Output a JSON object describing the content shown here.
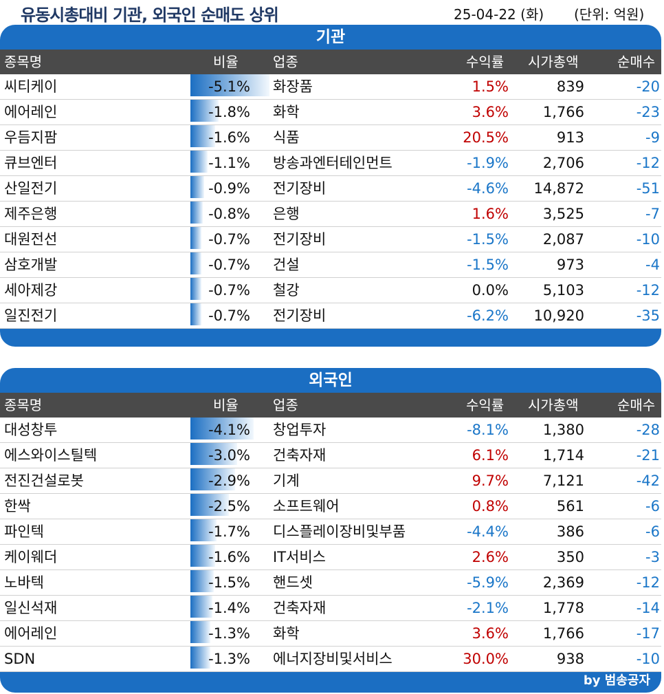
{
  "header": {
    "title": "유동시총대비 기관, 외국인 순매도 상위",
    "date": "25-04-22 (화)",
    "unit": "(단위: 억원)"
  },
  "columns": [
    "종목명",
    "비율",
    "업종",
    "수익률",
    "시가총액",
    "순매수"
  ],
  "colors": {
    "panel": "#1b6ec2",
    "header_bg": "#4a4a4a",
    "positive": "#c00000",
    "negative": "#1a76c8"
  },
  "credit": "by 범송공자",
  "chart_data": [
    {
      "type": "table",
      "title": "기관",
      "rows": [
        {
          "name": "씨티케이",
          "ratio": "-5.1%",
          "ratio_value": -5.1,
          "industry": "화장품",
          "return": "1.5%",
          "return_value": 1.5,
          "market_cap": "839",
          "net_buy": "-20"
        },
        {
          "name": "에어레인",
          "ratio": "-1.8%",
          "ratio_value": -1.8,
          "industry": "화학",
          "return": "3.6%",
          "return_value": 3.6,
          "market_cap": "1,766",
          "net_buy": "-23"
        },
        {
          "name": "우듬지팜",
          "ratio": "-1.6%",
          "ratio_value": -1.6,
          "industry": "식품",
          "return": "20.5%",
          "return_value": 20.5,
          "market_cap": "913",
          "net_buy": "-9"
        },
        {
          "name": "큐브엔터",
          "ratio": "-1.1%",
          "ratio_value": -1.1,
          "industry": "방송과엔터테인먼트",
          "return": "-1.9%",
          "return_value": -1.9,
          "market_cap": "2,706",
          "net_buy": "-12"
        },
        {
          "name": "산일전기",
          "ratio": "-0.9%",
          "ratio_value": -0.9,
          "industry": "전기장비",
          "return": "-4.6%",
          "return_value": -4.6,
          "market_cap": "14,872",
          "net_buy": "-51"
        },
        {
          "name": "제주은행",
          "ratio": "-0.8%",
          "ratio_value": -0.8,
          "industry": "은행",
          "return": "1.6%",
          "return_value": 1.6,
          "market_cap": "3,525",
          "net_buy": "-7"
        },
        {
          "name": "대원전선",
          "ratio": "-0.7%",
          "ratio_value": -0.7,
          "industry": "전기장비",
          "return": "-1.5%",
          "return_value": -1.5,
          "market_cap": "2,087",
          "net_buy": "-10"
        },
        {
          "name": "삼호개발",
          "ratio": "-0.7%",
          "ratio_value": -0.7,
          "industry": "건설",
          "return": "-1.5%",
          "return_value": -1.5,
          "market_cap": "973",
          "net_buy": "-4"
        },
        {
          "name": "세아제강",
          "ratio": "-0.7%",
          "ratio_value": -0.7,
          "industry": "철강",
          "return": "0.0%",
          "return_value": 0.0,
          "market_cap": "5,103",
          "net_buy": "-12"
        },
        {
          "name": "일진전기",
          "ratio": "-0.7%",
          "ratio_value": -0.7,
          "industry": "전기장비",
          "return": "-6.2%",
          "return_value": -6.2,
          "market_cap": "10,920",
          "net_buy": "-35"
        }
      ]
    },
    {
      "type": "table",
      "title": "외국인",
      "rows": [
        {
          "name": "대성창투",
          "ratio": "-4.1%",
          "ratio_value": -4.1,
          "industry": "창업투자",
          "return": "-8.1%",
          "return_value": -8.1,
          "market_cap": "1,380",
          "net_buy": "-28"
        },
        {
          "name": "에스와이스틸텍",
          "ratio": "-3.0%",
          "ratio_value": -3.0,
          "industry": "건축자재",
          "return": "6.1%",
          "return_value": 6.1,
          "market_cap": "1,714",
          "net_buy": "-21"
        },
        {
          "name": "전진건설로봇",
          "ratio": "-2.9%",
          "ratio_value": -2.9,
          "industry": "기계",
          "return": "9.7%",
          "return_value": 9.7,
          "market_cap": "7,121",
          "net_buy": "-42"
        },
        {
          "name": "한싹",
          "ratio": "-2.5%",
          "ratio_value": -2.5,
          "industry": "소프트웨어",
          "return": "0.8%",
          "return_value": 0.8,
          "market_cap": "561",
          "net_buy": "-6"
        },
        {
          "name": "파인텍",
          "ratio": "-1.7%",
          "ratio_value": -1.7,
          "industry": "디스플레이장비및부품",
          "return": "-4.4%",
          "return_value": -4.4,
          "market_cap": "386",
          "net_buy": "-6"
        },
        {
          "name": "케이웨더",
          "ratio": "-1.6%",
          "ratio_value": -1.6,
          "industry": "IT서비스",
          "return": "2.6%",
          "return_value": 2.6,
          "market_cap": "350",
          "net_buy": "-3"
        },
        {
          "name": "노바텍",
          "ratio": "-1.5%",
          "ratio_value": -1.5,
          "industry": "핸드셋",
          "return": "-5.9%",
          "return_value": -5.9,
          "market_cap": "2,369",
          "net_buy": "-12"
        },
        {
          "name": "일신석재",
          "ratio": "-1.4%",
          "ratio_value": -1.4,
          "industry": "건축자재",
          "return": "-2.1%",
          "return_value": -2.1,
          "market_cap": "1,778",
          "net_buy": "-14"
        },
        {
          "name": "에어레인",
          "ratio": "-1.3%",
          "ratio_value": -1.3,
          "industry": "화학",
          "return": "3.6%",
          "return_value": 3.6,
          "market_cap": "1,766",
          "net_buy": "-17"
        },
        {
          "name": "SDN",
          "ratio": "-1.3%",
          "ratio_value": -1.3,
          "industry": "에너지장비및서비스",
          "return": "30.0%",
          "return_value": 30.0,
          "market_cap": "938",
          "net_buy": "-10"
        }
      ]
    }
  ]
}
